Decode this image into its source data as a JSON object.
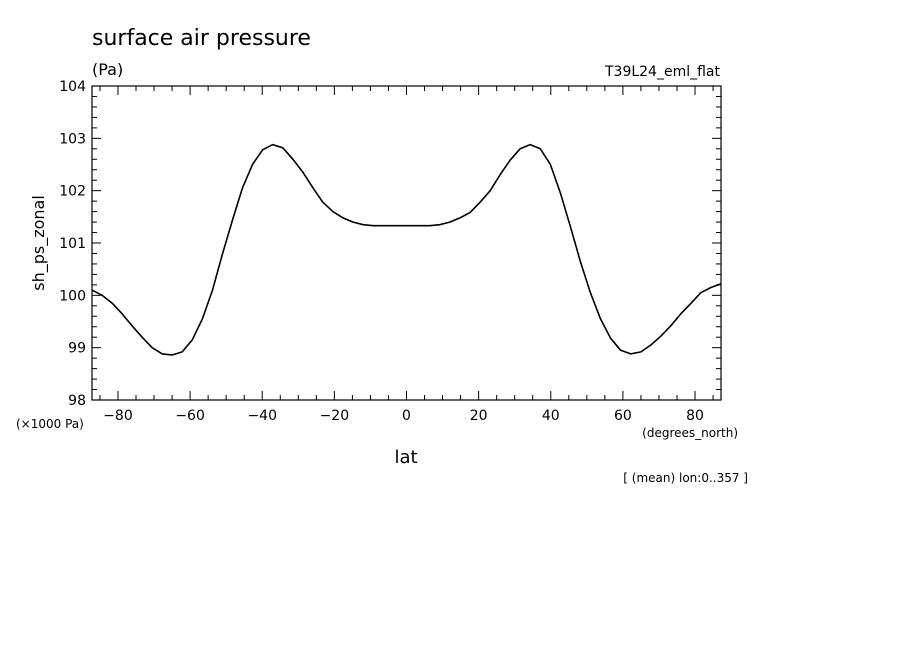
{
  "chart_data": {
    "type": "line",
    "title": "surface air pressure",
    "units": "(Pa)",
    "run_label": "T39L24_eml_flat",
    "ylabel": "sh_ps_zonal",
    "y_scale_note": "(×1000 Pa)",
    "xlabel": "lat",
    "x_units": "(degrees_north)",
    "footnote": "[ (mean) lon:0..357 ]",
    "xlim": [
      -87.2,
      87.2
    ],
    "ylim": [
      98,
      104
    ],
    "x_ticks": [
      -80,
      -60,
      -40,
      -20,
      0,
      20,
      40,
      60,
      80
    ],
    "x_tick_labels": [
      "−80",
      "−60",
      "−40",
      "−20",
      "0",
      "20",
      "40",
      "60",
      "80"
    ],
    "y_ticks": [
      98,
      99,
      100,
      101,
      102,
      103,
      104
    ],
    "y_tick_labels": [
      "98",
      "99",
      "100",
      "101",
      "102",
      "103",
      "104"
    ],
    "grid": false,
    "series": [
      {
        "x": [
          -87.2,
          -84.4,
          -81.6,
          -78.9,
          -76.1,
          -73.3,
          -70.5,
          -67.7,
          -65.0,
          -62.2,
          -59.4,
          -56.6,
          -53.8,
          -51.0,
          -48.2,
          -45.5,
          -42.7,
          -39.9,
          -37.1,
          -34.3,
          -31.5,
          -28.7,
          -25.9,
          -23.2,
          -20.4,
          -17.6,
          -14.8,
          -12.0,
          -9.2,
          -6.4,
          -3.6,
          -0.9,
          0.9,
          3.6,
          6.4,
          9.2,
          12.0,
          14.8,
          17.6,
          20.4,
          23.2,
          25.9,
          28.7,
          31.5,
          34.3,
          37.1,
          39.9,
          42.7,
          45.5,
          48.2,
          51.0,
          53.8,
          56.6,
          59.4,
          62.2,
          65.0,
          67.7,
          70.5,
          73.3,
          76.1,
          78.9,
          81.6,
          84.4,
          87.2
        ],
        "y": [
          100.1,
          100.0,
          99.85,
          99.65,
          99.42,
          99.2,
          99.0,
          98.88,
          98.86,
          98.92,
          99.15,
          99.55,
          100.1,
          100.8,
          101.45,
          102.05,
          102.5,
          102.78,
          102.88,
          102.82,
          102.6,
          102.35,
          102.05,
          101.78,
          101.6,
          101.48,
          101.4,
          101.35,
          101.33,
          101.33,
          101.33,
          101.33,
          101.33,
          101.33,
          101.33,
          101.35,
          101.4,
          101.48,
          101.58,
          101.78,
          102.0,
          102.3,
          102.58,
          102.8,
          102.88,
          102.8,
          102.5,
          101.95,
          101.3,
          100.65,
          100.05,
          99.55,
          99.18,
          98.95,
          98.88,
          98.92,
          99.05,
          99.22,
          99.42,
          99.65,
          99.85,
          100.05,
          100.15,
          100.22
        ]
      }
    ]
  }
}
